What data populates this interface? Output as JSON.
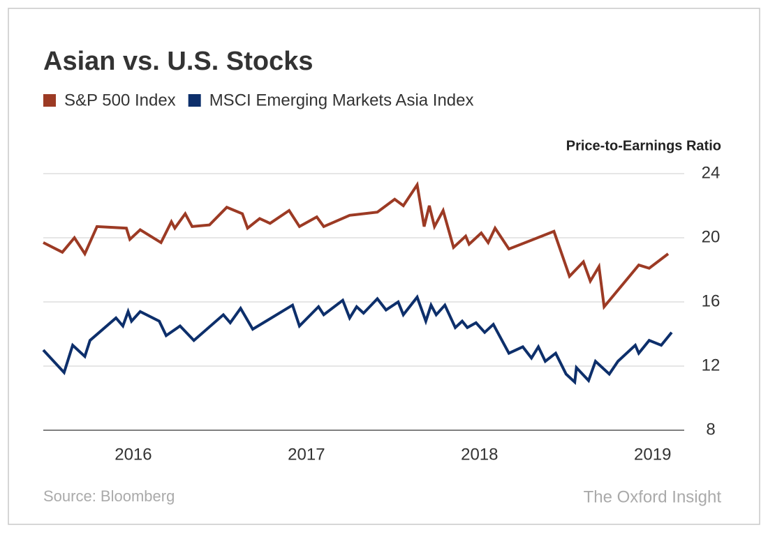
{
  "chart_data": {
    "type": "line",
    "title": "Asian vs. U.S. Stocks",
    "y_label": "Price-to-Earnings Ratio",
    "source": "Source: Bloomberg",
    "credit": "The Oxford Insight",
    "xlim": [
      2015.48,
      2019.11
    ],
    "xticks": [
      2016,
      2017,
      2018,
      2019
    ],
    "ylim": [
      8,
      24
    ],
    "yticks": [
      8,
      12,
      16,
      20,
      24
    ],
    "grid": true,
    "series": [
      {
        "name": "S&P 500 Index",
        "color": "#9c3a24",
        "x": [
          2015.48,
          2015.59,
          2015.66,
          2015.72,
          2015.79,
          2015.96,
          2015.98,
          2016.04,
          2016.16,
          2016.22,
          2016.24,
          2016.3,
          2016.34,
          2016.44,
          2016.54,
          2016.63,
          2016.66,
          2016.73,
          2016.79,
          2016.9,
          2016.96,
          2017.06,
          2017.1,
          2017.25,
          2017.41,
          2017.51,
          2017.56,
          2017.64,
          2017.68,
          2017.71,
          2017.74,
          2017.79,
          2017.85,
          2017.92,
          2017.94,
          2018.01,
          2018.05,
          2018.09,
          2018.17,
          2018.43,
          2018.52,
          2018.6,
          2018.64,
          2018.69,
          2018.72,
          2018.92,
          2018.98,
          2019.09
        ],
        "values": [
          19.7,
          19.1,
          20.0,
          19.0,
          20.7,
          20.6,
          19.9,
          20.5,
          19.7,
          21.0,
          20.6,
          21.5,
          20.7,
          20.8,
          21.9,
          21.5,
          20.6,
          21.2,
          20.9,
          21.7,
          20.7,
          21.3,
          20.7,
          21.4,
          21.6,
          22.4,
          22.0,
          23.3,
          20.7,
          22.0,
          20.7,
          21.7,
          19.4,
          20.1,
          19.6,
          20.3,
          19.7,
          20.6,
          19.3,
          20.4,
          17.6,
          18.5,
          17.3,
          18.2,
          15.7,
          18.3,
          18.1,
          19.0
        ]
      },
      {
        "name": "MSCI Emerging Markets Asia Index",
        "color": "#0d2f6b",
        "x": [
          2015.48,
          2015.6,
          2015.65,
          2015.72,
          2015.75,
          2015.9,
          2015.94,
          2015.97,
          2015.99,
          2016.04,
          2016.15,
          2016.19,
          2016.27,
          2016.35,
          2016.52,
          2016.56,
          2016.62,
          2016.69,
          2016.92,
          2016.96,
          2017.07,
          2017.1,
          2017.21,
          2017.25,
          2017.29,
          2017.33,
          2017.41,
          2017.46,
          2017.53,
          2017.56,
          2017.64,
          2017.69,
          2017.72,
          2017.75,
          2017.8,
          2017.86,
          2017.9,
          2017.93,
          2017.98,
          2018.03,
          2018.08,
          2018.17,
          2018.25,
          2018.3,
          2018.34,
          2018.38,
          2018.44,
          2018.5,
          2018.55,
          2018.56,
          2018.63,
          2018.67,
          2018.75,
          2018.8,
          2018.9,
          2018.92,
          2018.98,
          2019.05,
          2019.11
        ],
        "values": [
          13.0,
          11.6,
          13.3,
          12.6,
          13.6,
          15.0,
          14.5,
          15.4,
          14.8,
          15.4,
          14.8,
          13.9,
          14.5,
          13.6,
          15.2,
          14.7,
          15.6,
          14.3,
          15.8,
          14.5,
          15.7,
          15.2,
          16.1,
          15.0,
          15.7,
          15.3,
          16.2,
          15.5,
          16.0,
          15.2,
          16.3,
          14.8,
          15.8,
          15.2,
          15.8,
          14.4,
          14.8,
          14.4,
          14.7,
          14.1,
          14.6,
          12.8,
          13.2,
          12.5,
          13.2,
          12.3,
          12.8,
          11.5,
          11.0,
          11.9,
          11.1,
          12.3,
          11.5,
          12.3,
          13.3,
          12.8,
          13.6,
          13.3,
          14.1
        ]
      }
    ]
  }
}
